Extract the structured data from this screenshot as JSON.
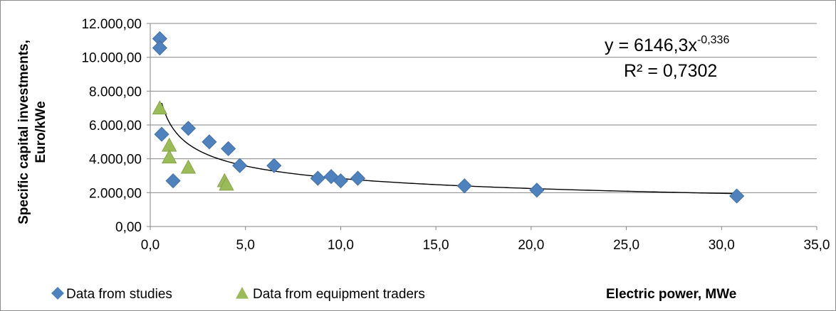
{
  "chart_data": {
    "type": "scatter",
    "xlabel": "Electric power, MWe",
    "ylabel_lines": [
      "Specific capital investments,",
      "Euro/kWe"
    ],
    "xlim": [
      0,
      35
    ],
    "ylim": [
      0,
      12000
    ],
    "x_ticks": [
      "0,0",
      "5,0",
      "10,0",
      "15,0",
      "20,0",
      "25,0",
      "30,0",
      "35,0"
    ],
    "y_ticks": [
      "0,00",
      "2.000,00",
      "4.000,00",
      "6.000,00",
      "8.000,00",
      "10.000,00",
      "12.000,00"
    ],
    "grid": "horizontal major",
    "legend_position": "bottom",
    "series": [
      {
        "name": "Data from studies",
        "marker": "diamond",
        "color": "#4f81bd",
        "x": [
          0.5,
          0.5,
          0.6,
          1.2,
          2.0,
          3.1,
          4.1,
          4.7,
          6.5,
          8.8,
          9.5,
          10.0,
          10.9,
          16.5,
          20.3,
          30.8
        ],
        "y": [
          11100,
          10550,
          5450,
          2700,
          5800,
          5000,
          4600,
          3600,
          3600,
          2850,
          2950,
          2700,
          2850,
          2400,
          2150,
          1800
        ]
      },
      {
        "name": "Data from equipment traders",
        "marker": "triangle",
        "color": "#9bbb59",
        "x": [
          0.5,
          1.0,
          1.0,
          2.0,
          3.9,
          4.0
        ],
        "y": [
          7000,
          4800,
          4100,
          3500,
          2700,
          2500
        ]
      }
    ],
    "trendline": {
      "type": "power",
      "coefficient": 6146.3,
      "exponent": -0.336,
      "x_range": [
        0.6,
        30.8
      ],
      "equation_base": "y = 6146,3x",
      "equation_exponent": "-0,336",
      "r_squared_label": "R² = 0,7302"
    }
  }
}
